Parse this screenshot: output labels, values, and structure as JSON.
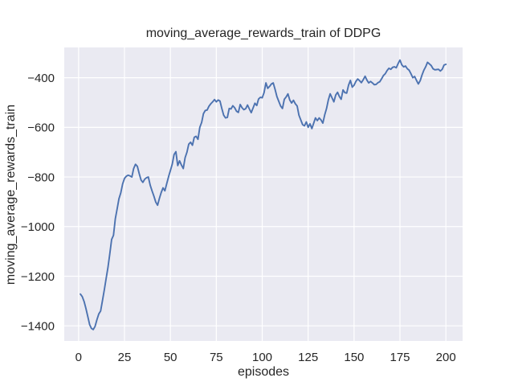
{
  "chart_data": {
    "type": "line",
    "title": "moving_average_rewards_train of DDPG",
    "xlabel": "episodes",
    "ylabel": "moving_average_rewards_train",
    "grid": true,
    "legend": null,
    "xlim": [
      -7.8,
      209.1
    ],
    "ylim": [
      -1461,
      -278
    ],
    "x_ticks": {
      "values": [
        0,
        25,
        50,
        75,
        100,
        125,
        150,
        175,
        200
      ],
      "labels": [
        "0",
        "25",
        "50",
        "75",
        "100",
        "125",
        "150",
        "175",
        "200"
      ]
    },
    "y_ticks": {
      "values": [
        -400,
        -600,
        -800,
        -1000,
        -1200,
        -1400
      ],
      "labels": [
        "−400",
        "−600",
        "−800",
        "−1000",
        "−1200",
        "−1400"
      ]
    },
    "style": {
      "figure_background": "#ffffff",
      "axes_background": "#eaeaf2",
      "grid_color": "#ffffff",
      "text_color": "#262626",
      "line_color": "#4c72b0",
      "line_width": 1.9
    },
    "series": [
      {
        "name": "moving_average_rewards_train",
        "color": "#4c72b0",
        "x": [
          1,
          2,
          3,
          4,
          5,
          6,
          7,
          8,
          9,
          10,
          11,
          12,
          13,
          14,
          15,
          16,
          17,
          18,
          19,
          20,
          21,
          22,
          23,
          24,
          25,
          26,
          27,
          28,
          29,
          30,
          31,
          32,
          33,
          34,
          35,
          36,
          37,
          38,
          39,
          40,
          41,
          42,
          43,
          44,
          45,
          46,
          47,
          48,
          49,
          50,
          51,
          52,
          53,
          54,
          55,
          56,
          57,
          58,
          59,
          60,
          61,
          62,
          63,
          64,
          65,
          66,
          67,
          68,
          69,
          70,
          71,
          72,
          73,
          74,
          75,
          76,
          77,
          78,
          79,
          80,
          81,
          82,
          83,
          84,
          85,
          86,
          87,
          88,
          89,
          90,
          91,
          92,
          93,
          94,
          95,
          96,
          97,
          98,
          99,
          100,
          101,
          102,
          103,
          104,
          105,
          106,
          107,
          108,
          109,
          110,
          111,
          112,
          113,
          114,
          115,
          116,
          117,
          118,
          119,
          120,
          121,
          122,
          123,
          124,
          125,
          126,
          127,
          128,
          129,
          130,
          131,
          132,
          133,
          134,
          135,
          136,
          137,
          138,
          139,
          140,
          141,
          142,
          143,
          144,
          145,
          146,
          147,
          148,
          149,
          150,
          151,
          152,
          153,
          154,
          155,
          156,
          157,
          158,
          159,
          160,
          161,
          162,
          163,
          164,
          165,
          166,
          167,
          168,
          169,
          170,
          171,
          172,
          173,
          174,
          175,
          176,
          177,
          178,
          179,
          180,
          181,
          182,
          183,
          184,
          185,
          186,
          187,
          188,
          189,
          190,
          191,
          192,
          193,
          194,
          195,
          196,
          197,
          198,
          199,
          200
        ],
        "y": [
          -1272,
          -1282,
          -1302,
          -1330,
          -1362,
          -1395,
          -1410,
          -1415,
          -1402,
          -1375,
          -1352,
          -1340,
          -1298,
          -1255,
          -1210,
          -1165,
          -1110,
          -1052,
          -1035,
          -968,
          -928,
          -888,
          -864,
          -828,
          -806,
          -797,
          -793,
          -796,
          -800,
          -766,
          -749,
          -757,
          -786,
          -812,
          -822,
          -809,
          -803,
          -800,
          -833,
          -856,
          -877,
          -901,
          -914,
          -886,
          -863,
          -844,
          -856,
          -827,
          -799,
          -774,
          -748,
          -710,
          -698,
          -754,
          -735,
          -752,
          -766,
          -722,
          -700,
          -668,
          -660,
          -672,
          -640,
          -636,
          -648,
          -600,
          -580,
          -545,
          -532,
          -530,
          -515,
          -505,
          -497,
          -488,
          -497,
          -490,
          -494,
          -524,
          -551,
          -562,
          -560,
          -524,
          -526,
          -513,
          -521,
          -535,
          -540,
          -508,
          -521,
          -529,
          -525,
          -510,
          -526,
          -541,
          -522,
          -503,
          -512,
          -486,
          -479,
          -481,
          -460,
          -421,
          -443,
          -435,
          -425,
          -421,
          -447,
          -476,
          -495,
          -514,
          -524,
          -487,
          -478,
          -465,
          -490,
          -502,
          -491,
          -505,
          -514,
          -551,
          -570,
          -589,
          -594,
          -578,
          -600,
          -586,
          -605,
          -584,
          -562,
          -573,
          -562,
          -570,
          -583,
          -550,
          -524,
          -490,
          -465,
          -481,
          -497,
          -470,
          -459,
          -476,
          -487,
          -449,
          -460,
          -462,
          -430,
          -411,
          -438,
          -430,
          -415,
          -405,
          -412,
          -420,
          -408,
          -394,
          -410,
          -421,
          -415,
          -421,
          -428,
          -427,
          -420,
          -416,
          -404,
          -391,
          -384,
          -371,
          -362,
          -366,
          -358,
          -356,
          -360,
          -343,
          -329,
          -348,
          -356,
          -353,
          -364,
          -370,
          -384,
          -400,
          -395,
          -411,
          -425,
          -412,
          -389,
          -370,
          -356,
          -338,
          -344,
          -351,
          -364,
          -368,
          -367,
          -366,
          -373,
          -366,
          -349,
          -346
        ]
      }
    ]
  }
}
